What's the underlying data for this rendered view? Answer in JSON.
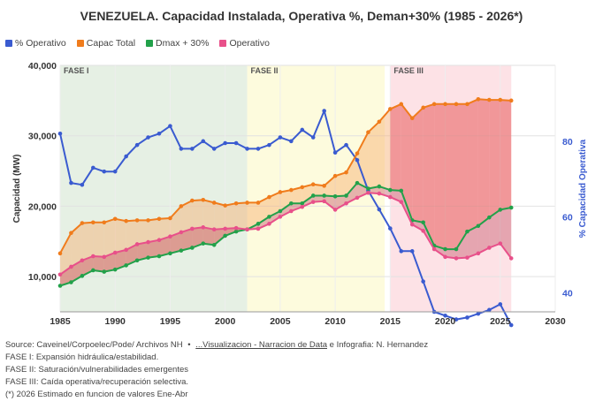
{
  "chart_data": {
    "type": "area",
    "title": "VENEZUELA. Capacidad Instalada, Operativa %, Deman+30% (1985 - 2026*)",
    "ylabel": "Capacidad (MW)",
    "ylabel_right": "% Capacidad Operativa",
    "xlim": [
      1985,
      2030
    ],
    "ylim": [
      5000,
      40000
    ],
    "ylim_right": [
      35,
      100
    ],
    "x_ticks": [
      "1985",
      "1990",
      "1995",
      "2000",
      "2005",
      "2010",
      "2015",
      "2020",
      "2025",
      "2030"
    ],
    "y_ticks": [
      "10,000",
      "20,000",
      "30,000",
      "40,000"
    ],
    "y_right_ticks": [
      "40",
      "60",
      "80"
    ],
    "grid": true,
    "legend_position": "top-left",
    "phases": [
      {
        "label": "FASE I",
        "start": 1985,
        "end": 2002,
        "color": "#e6f0e4"
      },
      {
        "label": "FASE II",
        "start": 2002,
        "end": 2014.5,
        "color": "#fdfbdd"
      },
      {
        "label": "FASE III",
        "start": 2015,
        "end": 2026,
        "color": "#fde2e6"
      }
    ],
    "x": [
      1985,
      1986,
      1987,
      1988,
      1989,
      1990,
      1991,
      1992,
      1993,
      1994,
      1995,
      1996,
      1997,
      1998,
      1999,
      2000,
      2001,
      2002,
      2003,
      2004,
      2005,
      2006,
      2007,
      2008,
      2009,
      2010,
      2011,
      2012,
      2013,
      2014,
      2015,
      2016,
      2017,
      2018,
      2019,
      2020,
      2021,
      2022,
      2023,
      2024,
      2025,
      2026
    ],
    "series": [
      {
        "name": "% Operativo",
        "axis": "right",
        "color": "#3a5bd0",
        "values": [
          82,
          69,
          68.5,
          73,
          72,
          72,
          76,
          79,
          81,
          82,
          84,
          78,
          78,
          80,
          78,
          79.5,
          79.5,
          78,
          78,
          79,
          81,
          80,
          83,
          81,
          88,
          77,
          79,
          75,
          67,
          62,
          57,
          51,
          51,
          43,
          35,
          34,
          33,
          33.5,
          34.5,
          35.5,
          37,
          31.5
        ]
      },
      {
        "name": "Capac Total",
        "axis": "left",
        "color": "#f07c1c",
        "values": [
          13300,
          16200,
          17600,
          17700,
          17700,
          18200,
          17900,
          18000,
          18000,
          18200,
          18300,
          20000,
          20800,
          20900,
          20500,
          20100,
          20400,
          20500,
          20500,
          21300,
          22000,
          22300,
          22700,
          23100,
          22900,
          24300,
          24800,
          27500,
          30500,
          32000,
          33800,
          34500,
          32500,
          34000,
          34500,
          34500,
          34500,
          34500,
          35200,
          35100,
          35100,
          35000
        ]
      },
      {
        "name": "Dmax + 30%",
        "axis": "left",
        "color": "#22a14a",
        "values": [
          8700,
          9200,
          10100,
          10900,
          10700,
          11000,
          11600,
          12300,
          12700,
          12900,
          13300,
          13700,
          14100,
          14700,
          14500,
          15800,
          16400,
          16700,
          17500,
          18500,
          19300,
          20400,
          20400,
          21500,
          21500,
          21400,
          21500,
          23300,
          22500,
          22800,
          22300,
          22200,
          18000,
          17700,
          14400,
          13900,
          13900,
          16400,
          17200,
          18400,
          19500,
          19800
        ]
      },
      {
        "name": "Operativo",
        "axis": "left",
        "color": "#e8508a",
        "values": [
          10300,
          11400,
          12300,
          12900,
          12800,
          13400,
          13800,
          14600,
          14900,
          15200,
          15700,
          16300,
          16800,
          17000,
          16700,
          16800,
          16900,
          16700,
          16800,
          17500,
          18500,
          19300,
          19900,
          20600,
          20700,
          19500,
          20400,
          21200,
          21900,
          21800,
          21300,
          20600,
          17400,
          16500,
          13900,
          12800,
          12600,
          12700,
          13300,
          14100,
          14700,
          12600
        ]
      }
    ]
  },
  "footer": {
    "source_prefix": "Source: Caveinel/Corpoelec/Pode/ Archivos NH",
    "bullet": "•",
    "link_text": "...Visualizacion - Narracion de Data",
    "source_suffix": "e Infografia: N. Hernandez",
    "note_1": "FASE I: Expansión hidráulica/estabilidad.",
    "note_2": "FASE II: Saturación/vulnerabilidades emergentes",
    "note_3": "FASE III: Caída operativa/recuperación selectiva.",
    "note_4": "(*) 2026 Estimado en funcion de valores Ene-Abr"
  }
}
